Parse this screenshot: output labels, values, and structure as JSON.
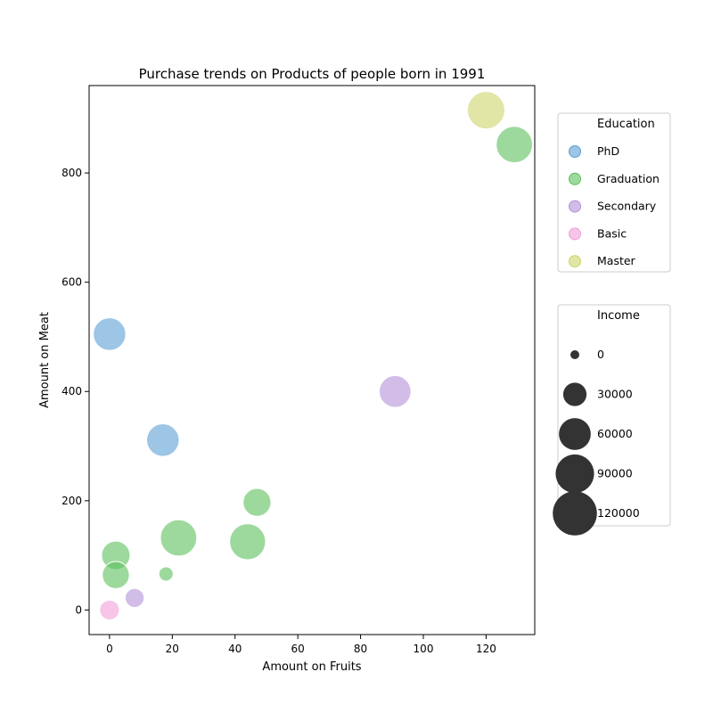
{
  "chart_data": {
    "type": "scatter",
    "title": "Purchase trends on Products of people born in 1991",
    "xlabel": "Amount on Fruits",
    "ylabel": "Amount on Meat",
    "xlim": [
      -6.5,
      135.5
    ],
    "ylim": [
      -45,
      960
    ],
    "xticks": [
      0,
      20,
      40,
      60,
      80,
      100,
      120
    ],
    "yticks": [
      0,
      200,
      400,
      600,
      800
    ],
    "grid": false,
    "hue_legend": {
      "title": "Education",
      "placement": "right-top",
      "categories": [
        {
          "name": "PhD",
          "color": "#5b9fd3"
        },
        {
          "name": "Graduation",
          "color": "#5cbf5c"
        },
        {
          "name": "Secondary",
          "color": "#b291d9"
        },
        {
          "name": "Basic",
          "color": "#f09fd9"
        },
        {
          "name": "Master",
          "color": "#cdd36a"
        }
      ]
    },
    "size_legend": {
      "title": "Income",
      "placement": "right-middle",
      "entries": [
        {
          "label": "0",
          "value": 0
        },
        {
          "label": "30000",
          "value": 30000
        },
        {
          "label": "60000",
          "value": 60000
        },
        {
          "label": "90000",
          "value": 90000
        },
        {
          "label": "120000",
          "value": 120000
        }
      ],
      "marker_color": "#333333"
    },
    "points": [
      {
        "x": 0,
        "y": 505,
        "education": "PhD",
        "income": 63000
      },
      {
        "x": 17,
        "y": 311,
        "education": "PhD",
        "income": 63000
      },
      {
        "x": 129,
        "y": 852,
        "education": "Graduation",
        "income": 80000
      },
      {
        "x": 22,
        "y": 132,
        "education": "Graduation",
        "income": 80000
      },
      {
        "x": 44,
        "y": 125,
        "education": "Graduation",
        "income": 78000
      },
      {
        "x": 47,
        "y": 197,
        "education": "Graduation",
        "income": 45000
      },
      {
        "x": 2,
        "y": 100,
        "education": "Graduation",
        "income": 47000
      },
      {
        "x": 2,
        "y": 64,
        "education": "Graduation",
        "income": 42000
      },
      {
        "x": 18,
        "y": 66,
        "education": "Graduation",
        "income": 8000
      },
      {
        "x": 91,
        "y": 400,
        "education": "Secondary",
        "income": 60000
      },
      {
        "x": 8,
        "y": 22,
        "education": "Secondary",
        "income": 18000
      },
      {
        "x": 0,
        "y": 0,
        "education": "Basic",
        "income": 20000
      },
      {
        "x": 120,
        "y": 915,
        "education": "Master",
        "income": 85000
      }
    ]
  }
}
